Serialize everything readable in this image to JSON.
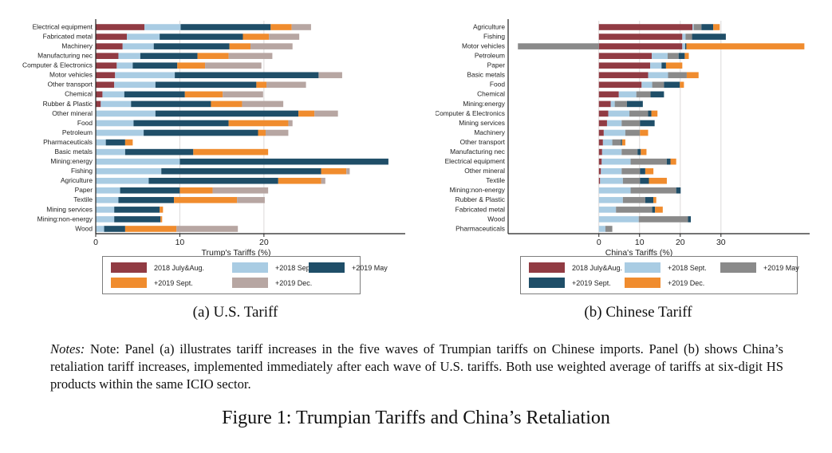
{
  "figure": {
    "caption_a": "(a) U.S. Tariff",
    "caption_b": "(b) Chinese Tariff",
    "notes_label": "Notes:",
    "notes_body": " Note: Panel (a) illustrates tariff increases in the five waves of Trumpian tariffs on Chinese imports. Panel (b) shows China’s retaliation tariff increases, implemented immediately after each wave of U.S. tariffs. Both use weighted average of tariffs at six-digit HS products within the same ICIO sector.",
    "title": "Figure 1: Trumpian Tariffs and China’s Retaliation"
  },
  "colors": {
    "wave_2018_julyaug": "#913B43",
    "wave_2018_sept": "#A9CCE3",
    "wave_2019_may_us": "#1F4E68",
    "wave_2019_sept_us": "#F08C2E",
    "wave_2019_dec_us": "#B7A6A2",
    "wave_2019_may_cn": "#8A8A8A",
    "wave_2019_sept_cn": "#1F4E68",
    "wave_2019_dec_cn": "#F08C2E",
    "axis": "#222222",
    "gridline": "#DCD9D9"
  },
  "chart_data": [
    {
      "type": "bar",
      "orientation": "horizontal",
      "stacked": true,
      "panel": "a",
      "xlabel": "Trump's Tariffs (%)",
      "xlim": [
        0,
        36.8
      ],
      "xticks": [
        0,
        10,
        20
      ],
      "gridlines": [
        10,
        20
      ],
      "legend_position": "bottom",
      "categories": [
        "Electrical equipment",
        "Fabricated metal",
        "Machinery",
        "Manufacturing nec",
        "Computer & Electronics",
        "Motor vehicles",
        "Other transport",
        "Chemical",
        "Rubber & Plastic",
        "Other mineral",
        "Food",
        "Petroleum",
        "Pharmaceuticals",
        "Basic metals",
        "Mining:energy",
        "Fishing",
        "Agriculture",
        "Paper",
        "Textile",
        "Mining services",
        "Mining:non-energy",
        "Wood"
      ],
      "series": [
        {
          "name": "2018 July&Aug.",
          "color": "#913B43",
          "values": [
            5.8,
            3.7,
            3.2,
            2.7,
            2.5,
            2.3,
            2.2,
            0.8,
            0.6,
            0,
            0,
            0,
            0,
            0,
            0,
            0,
            0,
            0,
            0,
            0,
            0,
            0
          ]
        },
        {
          "name": "+2018 Sept.",
          "color": "#A9CCE3",
          "values": [
            4.3,
            3.9,
            3.7,
            2.6,
            1.9,
            7.1,
            4.9,
            2.6,
            3.6,
            7.1,
            4.5,
            5.7,
            1.2,
            3.5,
            10.0,
            7.8,
            6.3,
            2.9,
            2.7,
            2.2,
            2.2,
            1.0
          ]
        },
        {
          "name": "+2019 May",
          "color": "#1F4E68",
          "values": [
            10.7,
            9.9,
            9.0,
            6.8,
            5.3,
            17.1,
            12.0,
            7.2,
            9.5,
            17.0,
            11.3,
            13.6,
            2.3,
            8.1,
            24.8,
            19.0,
            15.4,
            7.1,
            6.6,
            5.4,
            5.5,
            2.5
          ]
        },
        {
          "name": "+2019 Sept.",
          "color": "#F08C2E",
          "values": [
            2.5,
            3.1,
            2.5,
            3.7,
            3.3,
            0,
            1.2,
            4.5,
            3.7,
            1.9,
            7.1,
            0.9,
            0.9,
            8.9,
            0,
            3.0,
            5.1,
            3.9,
            7.5,
            0.4,
            0.2,
            6.1
          ]
        },
        {
          "name": "+2019 Dec.",
          "color": "#B7A6A2",
          "values": [
            2.3,
            3.6,
            5.0,
            5.2,
            6.7,
            2.8,
            4.7,
            4.8,
            4.9,
            2.8,
            0.5,
            2.7,
            0,
            0,
            0,
            0.4,
            0.5,
            6.6,
            3.3,
            0,
            0,
            7.3
          ]
        }
      ]
    },
    {
      "type": "bar",
      "orientation": "horizontal",
      "stacked": true,
      "panel": "b",
      "xlabel": "China's Tariffs (%)",
      "xlim": [
        -22.3,
        51.8
      ],
      "xticks": [
        0,
        10,
        20,
        30
      ],
      "gridlines": [
        0,
        10,
        20,
        30
      ],
      "legend_position": "bottom",
      "categories": [
        "Agriculture",
        "Fishing",
        "Motor vehicles",
        "Petroleum",
        "Paper",
        "Basic metals",
        "Food",
        "Chemical",
        "Mining:energy",
        "Computer & Electronics",
        "Mining services",
        "Machinery",
        "Other transport",
        "Manufacturing nec",
        "Electrical equipment",
        "Other mineral",
        "Textile",
        "Mining:non-energy",
        "Rubber & Plastic",
        "Fabricated metal",
        "Wood",
        "Pharmaceuticals"
      ],
      "series": [
        {
          "name": "2018 July&Aug.",
          "color": "#913B43",
          "values": [
            23.0,
            20.5,
            20.5,
            13.0,
            12.6,
            12.1,
            10.5,
            4.9,
            2.9,
            2.3,
            2.0,
            1.2,
            1.0,
            0.8,
            0.7,
            0.5,
            0.3,
            0,
            0,
            0,
            0,
            0
          ]
        },
        {
          "name": "+2018 Sept.",
          "color": "#A9CCE3",
          "values": [
            0.3,
            0.8,
            0.7,
            3.9,
            2.8,
            4.9,
            2.6,
            4.3,
            1.0,
            5.2,
            3.6,
            5.3,
            2.3,
            4.8,
            7.1,
            5.1,
            5.6,
            7.8,
            5.9,
            4.2,
            9.8,
            1.6
          ]
        },
        {
          "name": "+2019 May",
          "color": "#8A8A8A",
          "values": [
            1.9,
            1.6,
            -19.9,
            2.7,
            0,
            4.6,
            2.9,
            3.5,
            3.0,
            4.6,
            4.5,
            3.6,
            2.1,
            3.9,
            8.9,
            4.5,
            4.2,
            11.2,
            5.5,
            8.9,
            12.1,
            1.7
          ]
        },
        {
          "name": "+2019 Sept.",
          "color": "#1F4E68",
          "values": [
            2.9,
            8.3,
            0.3,
            1.5,
            1.1,
            0,
            3.9,
            3.3,
            3.9,
            0.8,
            3.6,
            0,
            0.3,
            0.8,
            0.9,
            1.3,
            2.2,
            1.1,
            2.0,
            0.7,
            0.7,
            0
          ]
        },
        {
          "name": "+2019 Dec.",
          "color": "#F08C2E",
          "values": [
            1.6,
            0,
            29.0,
            1.0,
            4.0,
            2.9,
            1.0,
            0,
            0,
            1.5,
            0,
            2.0,
            0.8,
            1.4,
            1.4,
            2.0,
            4.4,
            0,
            0.7,
            1.9,
            0,
            0
          ]
        }
      ]
    }
  ]
}
